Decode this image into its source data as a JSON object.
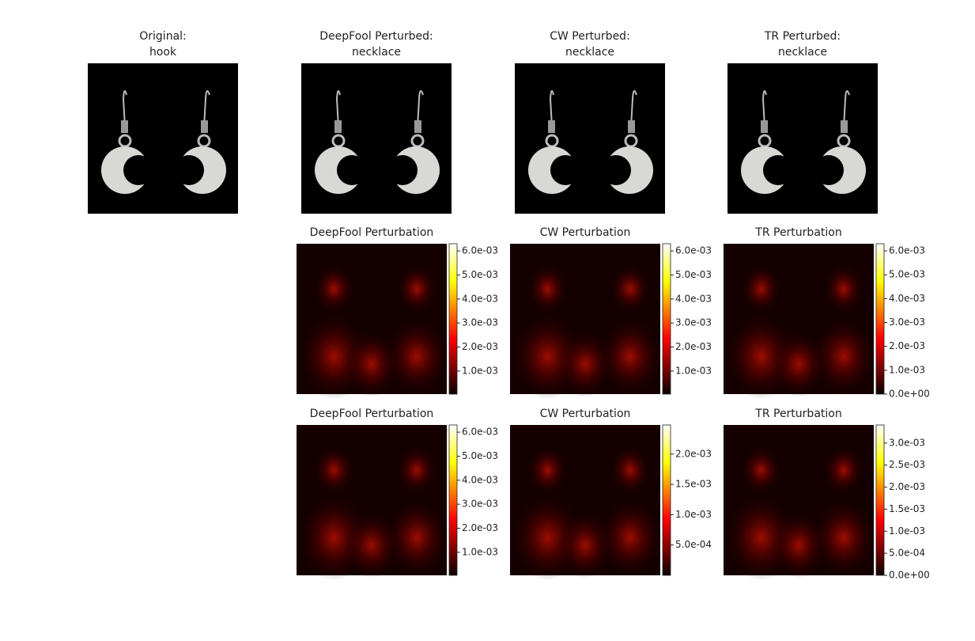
{
  "chart_data": [
    {
      "type": "image",
      "title": [
        "Original:",
        "hook"
      ]
    },
    {
      "type": "image",
      "title": [
        "DeepFool Perturbed:",
        "necklace"
      ]
    },
    {
      "type": "image",
      "title": [
        "CW Perturbed:",
        "necklace"
      ]
    },
    {
      "type": "image",
      "title": [
        "TR Perturbed:",
        "necklace"
      ]
    },
    {
      "type": "heatmap",
      "title": "DeepFool Perturbation",
      "clim": [
        4e-05,
        0.0063
      ],
      "cticks": [
        {
          "value": 0.001,
          "label": "1.0e-03"
        },
        {
          "value": 0.002,
          "label": "2.0e-03"
        },
        {
          "value": 0.003,
          "label": "3.0e-03"
        },
        {
          "value": 0.004,
          "label": "4.0e-03"
        },
        {
          "value": 0.005,
          "label": "5.0e-03"
        },
        {
          "value": 0.006,
          "label": "6.0e-03"
        }
      ]
    },
    {
      "type": "heatmap",
      "title": "CW Perturbation",
      "clim": [
        4e-05,
        0.0063
      ],
      "cticks": [
        {
          "value": 0.001,
          "label": "1.0e-03"
        },
        {
          "value": 0.002,
          "label": "2.0e-03"
        },
        {
          "value": 0.003,
          "label": "3.0e-03"
        },
        {
          "value": 0.004,
          "label": "4.0e-03"
        },
        {
          "value": 0.005,
          "label": "5.0e-03"
        },
        {
          "value": 0.006,
          "label": "6.0e-03"
        }
      ]
    },
    {
      "type": "heatmap",
      "title": "TR Perturbation",
      "clim": [
        0,
        0.0063
      ],
      "cticks": [
        {
          "value": 0,
          "label": "0.0e+00"
        },
        {
          "value": 0.001,
          "label": "1.0e-03"
        },
        {
          "value": 0.002,
          "label": "2.0e-03"
        },
        {
          "value": 0.003,
          "label": "3.0e-03"
        },
        {
          "value": 0.004,
          "label": "4.0e-03"
        },
        {
          "value": 0.005,
          "label": "5.0e-03"
        },
        {
          "value": 0.006,
          "label": "6.0e-03"
        }
      ]
    },
    {
      "type": "heatmap",
      "title": "DeepFool Perturbation",
      "clim": [
        4e-05,
        0.0063
      ],
      "cticks": [
        {
          "value": 0.001,
          "label": "1.0e-03"
        },
        {
          "value": 0.002,
          "label": "2.0e-03"
        },
        {
          "value": 0.003,
          "label": "3.0e-03"
        },
        {
          "value": 0.004,
          "label": "4.0e-03"
        },
        {
          "value": 0.005,
          "label": "5.0e-03"
        },
        {
          "value": 0.006,
          "label": "6.0e-03"
        }
      ]
    },
    {
      "type": "heatmap",
      "title": "CW Perturbation",
      "clim": [
        0,
        0.00248
      ],
      "cticks": [
        {
          "value": 0.0005,
          "label": "5.0e-04"
        },
        {
          "value": 0.001,
          "label": "1.0e-03"
        },
        {
          "value": 0.0015,
          "label": "1.5e-03"
        },
        {
          "value": 0.002,
          "label": "2.0e-03"
        }
      ]
    },
    {
      "type": "heatmap",
      "title": "TR Perturbation",
      "clim": [
        0,
        0.00341
      ],
      "cticks": [
        {
          "value": 0,
          "label": "0.0e+00"
        },
        {
          "value": 0.0005,
          "label": "5.0e-04"
        },
        {
          "value": 0.001,
          "label": "1.0e-03"
        },
        {
          "value": 0.0015,
          "label": "1.5e-03"
        },
        {
          "value": 0.002,
          "label": "2.0e-03"
        },
        {
          "value": 0.0025,
          "label": "2.5e-03"
        },
        {
          "value": 0.003,
          "label": "3.0e-03"
        }
      ]
    }
  ]
}
